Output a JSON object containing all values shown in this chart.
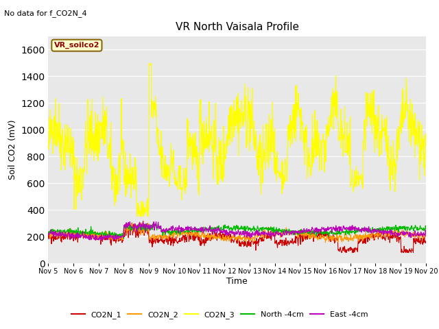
{
  "title": "VR North Vaisala Profile",
  "top_left_note": "No data for f_CO2N_4",
  "ylabel": "Soil CO2 (mV)",
  "xlabel": "Time",
  "legend_label": "VR_soilco2",
  "ylim": [
    0,
    1700
  ],
  "yticks": [
    0,
    200,
    400,
    600,
    800,
    1000,
    1200,
    1400,
    1600
  ],
  "xtick_labels": [
    "Nov 5",
    "Nov 6",
    "Nov 7",
    "Nov 8",
    "Nov 9",
    "Nov 10",
    "Nov 11",
    "Nov 12",
    "Nov 13",
    "Nov 14",
    "Nov 15",
    "Nov 16",
    "Nov 17",
    "Nov 18",
    "Nov 19",
    "Nov 20"
  ],
  "series_colors": {
    "CO2N_1": "#cc0000",
    "CO2N_2": "#ff9900",
    "CO2N_3": "#ffff00",
    "North_4cm": "#00bb00",
    "East_4cm": "#bb00bb"
  },
  "background_color": "#ffffff",
  "plot_bg_color": "#e8e8e8",
  "grid_color": "#ffffff"
}
